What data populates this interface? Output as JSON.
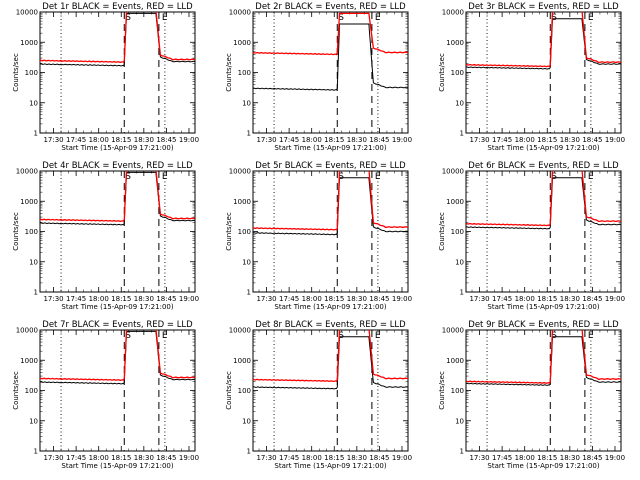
{
  "figure": {
    "ylabel": "Counts/sec",
    "xlabel": "Start Time (15-Apr-09 17:21:00)",
    "y_ticks": [
      "1",
      "10",
      "100",
      "1000",
      "10000"
    ],
    "x_ticks": [
      "17:30",
      "17:45",
      "18:00",
      "18:15",
      "18:30",
      "18:45",
      "19:00"
    ],
    "start_marker": "S",
    "end_marker": "E"
  },
  "chart_data": [
    {
      "type": "line",
      "title": "Det 1r BLACK = Events, RED = LLD",
      "xlim": [
        "17:21",
        "19:04"
      ],
      "ylim": [
        1,
        10000
      ],
      "ylog": true,
      "start_time": "18:17",
      "end_time": "18:40",
      "dotted_times": [
        "17:35",
        "18:44"
      ],
      "series": [
        {
          "name": "Events",
          "color": "#000000",
          "pre": 190,
          "flare": 9000,
          "post": 230
        },
        {
          "name": "LLD",
          "color": "#ff0000",
          "pre": 250,
          "flare": 12000,
          "post": 270
        }
      ]
    },
    {
      "type": "line",
      "title": "Det 2r BLACK = Events, RED = LLD",
      "xlim": [
        "17:21",
        "19:04"
      ],
      "ylim": [
        1,
        10000
      ],
      "ylog": true,
      "start_time": "18:17",
      "end_time": "18:40",
      "dotted_times": [
        "17:35",
        "18:44"
      ],
      "series": [
        {
          "name": "Events",
          "color": "#000000",
          "pre": 30,
          "flare": 4000,
          "post": 32
        },
        {
          "name": "LLD",
          "color": "#ff0000",
          "pre": 450,
          "flare": 9000,
          "post": 460
        }
      ]
    },
    {
      "type": "line",
      "title": "Det 3r BLACK = Events, RED = LLD",
      "xlim": [
        "17:21",
        "19:04"
      ],
      "ylim": [
        1,
        10000
      ],
      "ylog": true,
      "start_time": "18:17",
      "end_time": "18:40",
      "dotted_times": [
        "17:35",
        "18:44"
      ],
      "series": [
        {
          "name": "Events",
          "color": "#000000",
          "pre": 150,
          "flare": 6000,
          "post": 190
        },
        {
          "name": "LLD",
          "color": "#ff0000",
          "pre": 180,
          "flare": 12000,
          "post": 220
        }
      ]
    },
    {
      "type": "line",
      "title": "Det 4r BLACK = Events, RED = LLD",
      "xlim": [
        "17:21",
        "19:04"
      ],
      "ylim": [
        1,
        10000
      ],
      "ylog": true,
      "start_time": "18:17",
      "end_time": "18:40",
      "dotted_times": [
        "17:35",
        "18:44"
      ],
      "series": [
        {
          "name": "Events",
          "color": "#000000",
          "pre": 190,
          "flare": 9000,
          "post": 230
        },
        {
          "name": "LLD",
          "color": "#ff0000",
          "pre": 250,
          "flare": 12000,
          "post": 270
        }
      ]
    },
    {
      "type": "line",
      "title": "Det 5r BLACK = Events, RED = LLD",
      "xlim": [
        "17:21",
        "19:04"
      ],
      "ylim": [
        1,
        10000
      ],
      "ylog": true,
      "start_time": "18:17",
      "end_time": "18:40",
      "dotted_times": [
        "17:35",
        "18:44"
      ],
      "series": [
        {
          "name": "Events",
          "color": "#000000",
          "pre": 90,
          "flare": 6000,
          "post": 100
        },
        {
          "name": "LLD",
          "color": "#ff0000",
          "pre": 130,
          "flare": 12000,
          "post": 140
        }
      ]
    },
    {
      "type": "line",
      "title": "Det 6r BLACK = Events, RED = LLD",
      "xlim": [
        "17:21",
        "19:04"
      ],
      "ylim": [
        1,
        10000
      ],
      "ylog": true,
      "start_time": "18:17",
      "end_time": "18:40",
      "dotted_times": [
        "17:35",
        "18:44"
      ],
      "series": [
        {
          "name": "Events",
          "color": "#000000",
          "pre": 140,
          "flare": 6000,
          "post": 170
        },
        {
          "name": "LLD",
          "color": "#ff0000",
          "pre": 180,
          "flare": 12000,
          "post": 220
        }
      ]
    },
    {
      "type": "line",
      "title": "Det 7r BLACK = Events, RED = LLD",
      "xlim": [
        "17:21",
        "19:04"
      ],
      "ylim": [
        1,
        10000
      ],
      "ylog": true,
      "start_time": "18:17",
      "end_time": "18:40",
      "dotted_times": [
        "17:35",
        "18:44"
      ],
      "series": [
        {
          "name": "Events",
          "color": "#000000",
          "pre": 190,
          "flare": 9000,
          "post": 230
        },
        {
          "name": "LLD",
          "color": "#ff0000",
          "pre": 250,
          "flare": 12000,
          "post": 270
        }
      ]
    },
    {
      "type": "line",
      "title": "Det 8r BLACK = Events, RED = LLD",
      "xlim": [
        "17:21",
        "19:04"
      ],
      "ylim": [
        1,
        10000
      ],
      "ylog": true,
      "start_time": "18:17",
      "end_time": "18:40",
      "dotted_times": [
        "17:35",
        "18:44"
      ],
      "series": [
        {
          "name": "Events",
          "color": "#000000",
          "pre": 130,
          "flare": 6000,
          "post": 130
        },
        {
          "name": "LLD",
          "color": "#ff0000",
          "pre": 230,
          "flare": 12000,
          "post": 250
        }
      ]
    },
    {
      "type": "line",
      "title": "Det 9r BLACK = Events, RED = LLD",
      "xlim": [
        "17:21",
        "19:04"
      ],
      "ylim": [
        1,
        10000
      ],
      "ylog": true,
      "start_time": "18:17",
      "end_time": "18:40",
      "dotted_times": [
        "17:35",
        "18:44"
      ],
      "series": [
        {
          "name": "Events",
          "color": "#000000",
          "pre": 170,
          "flare": 6000,
          "post": 190
        },
        {
          "name": "LLD",
          "color": "#ff0000",
          "pre": 200,
          "flare": 12000,
          "post": 240
        }
      ]
    }
  ]
}
